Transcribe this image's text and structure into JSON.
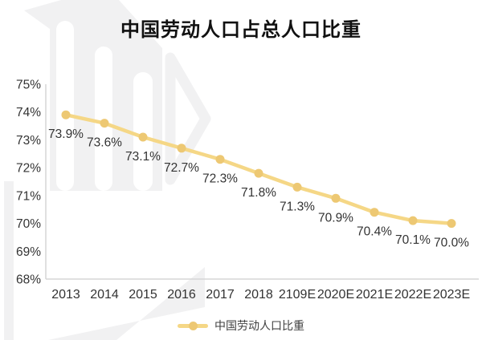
{
  "title": "中国劳动人口占总人口比重",
  "legend": {
    "label": "中国劳动人口比重"
  },
  "colors": {
    "line": "#F5D786",
    "marker": "#EDC873",
    "axis": "#D6D6D6",
    "tick_text": "#333333",
    "title_text": "#111111",
    "legend_text": "#404040",
    "watermark": "#f1f1f2"
  },
  "chart_data": {
    "type": "line",
    "title": "中国劳动人口占总人口比重",
    "series_name": "中国劳动人口比重",
    "categories": [
      "2013",
      "2014",
      "2015",
      "2016",
      "2017",
      "2018",
      "2109E",
      "2020E",
      "2021E",
      "2022E",
      "2023E"
    ],
    "values": [
      73.9,
      73.6,
      73.1,
      72.7,
      72.3,
      71.8,
      71.3,
      70.9,
      70.4,
      70.1,
      70.0
    ],
    "data_labels": [
      "73.9%",
      "73.6%",
      "73.1%",
      "72.7%",
      "72.3%",
      "71.8%",
      "71.3%",
      "70.9%",
      "70.4%",
      "70.1%",
      "70.0%"
    ],
    "ylim": [
      68,
      75
    ],
    "yticks": [
      "75%",
      "74%",
      "73%",
      "72%",
      "71%",
      "70%",
      "69%",
      "68%"
    ],
    "xlabel": "",
    "ylabel": "",
    "grid": false,
    "legend_position": "bottom"
  }
}
